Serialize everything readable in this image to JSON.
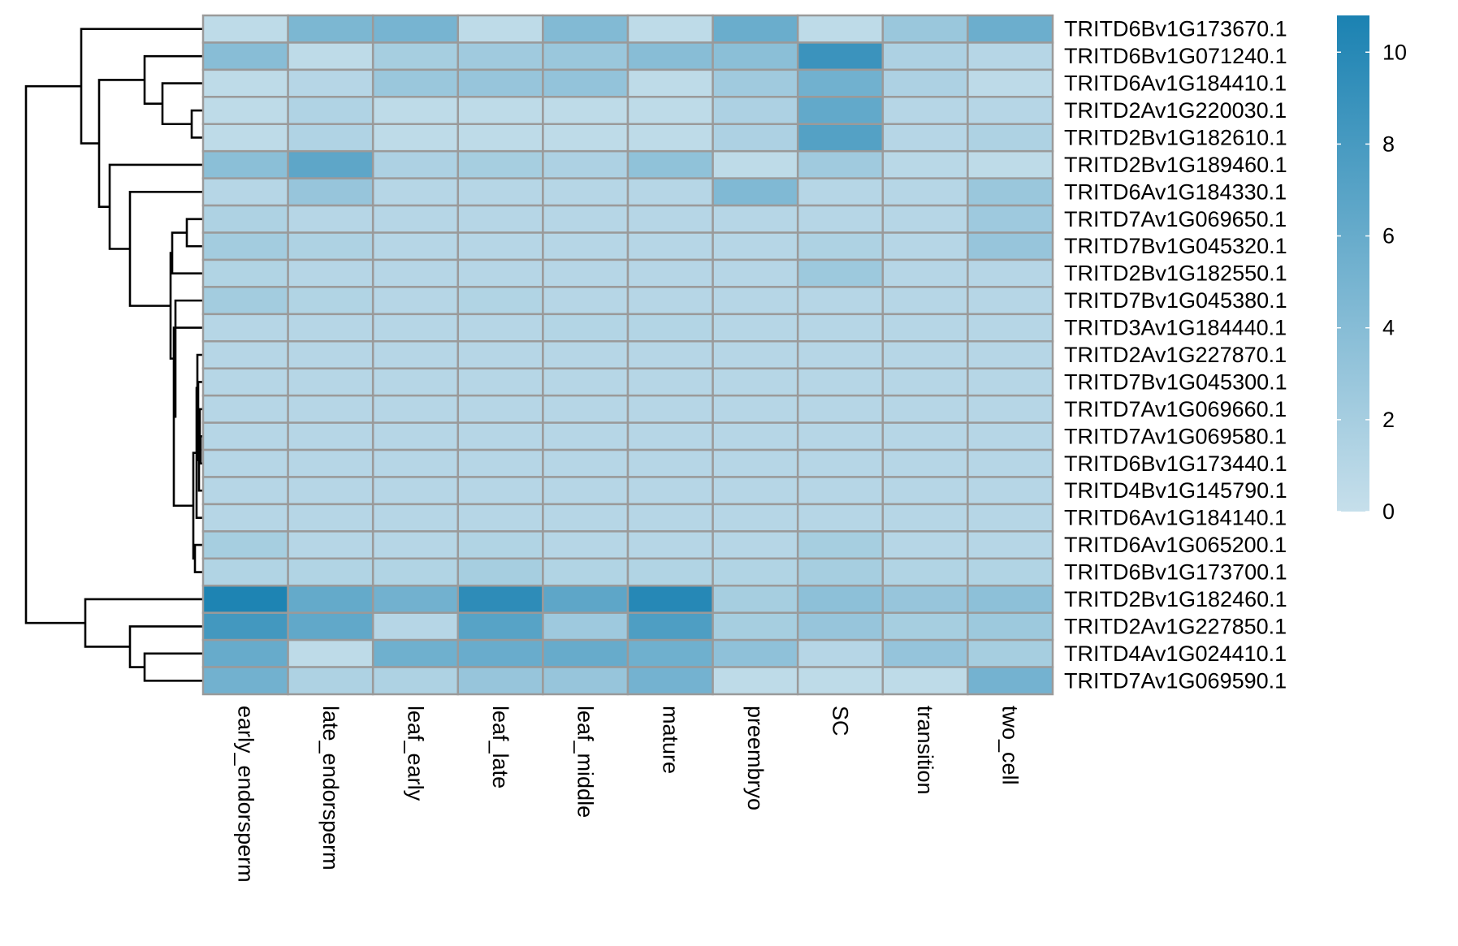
{
  "chart_data": {
    "type": "heatmap",
    "title": "",
    "xlabel": "",
    "ylabel": "",
    "columns": [
      "early_endorsperm",
      "late_endorsperm",
      "leaf_early",
      "leaf_late",
      "leaf_middle",
      "mature",
      "preembryo",
      "SC",
      "transition",
      "two_cell"
    ],
    "rows": [
      {
        "gene": "TRITD6Bv1G173670.1",
        "values": [
          0.5,
          4.7,
          5.0,
          0.5,
          4.3,
          0.5,
          5.8,
          0.5,
          2.8,
          5.7
        ]
      },
      {
        "gene": "TRITD6Bv1G071240.1",
        "values": [
          3.9,
          0.5,
          2.0,
          2.4,
          2.8,
          3.9,
          3.7,
          8.8,
          1.6,
          1.0
        ]
      },
      {
        "gene": "TRITD6Av1G184410.1",
        "values": [
          0.5,
          1.0,
          2.8,
          3.0,
          3.2,
          0.5,
          2.4,
          5.4,
          1.6,
          0.6
        ]
      },
      {
        "gene": "TRITD2Av1G220030.1",
        "values": [
          0.5,
          1.4,
          0.5,
          0.5,
          0.5,
          0.5,
          1.6,
          6.3,
          1.0,
          1.0
        ]
      },
      {
        "gene": "TRITD2Bv1G182610.1",
        "values": [
          0.5,
          1.4,
          0.5,
          0.5,
          0.5,
          0.5,
          1.6,
          7.2,
          1.0,
          1.5
        ]
      },
      {
        "gene": "TRITD2Bv1G189460.1",
        "values": [
          3.7,
          6.6,
          1.6,
          2.0,
          1.6,
          3.4,
          0.5,
          2.4,
          0.8,
          0.5
        ]
      },
      {
        "gene": "TRITD6Av1G184330.1",
        "values": [
          1.0,
          3.0,
          1.0,
          1.0,
          1.0,
          1.0,
          4.4,
          1.0,
          1.0,
          2.8
        ]
      },
      {
        "gene": "TRITD7Av1G069650.1",
        "values": [
          1.5,
          1.0,
          1.0,
          1.0,
          1.0,
          1.0,
          1.0,
          1.0,
          1.0,
          2.5
        ]
      },
      {
        "gene": "TRITD7Bv1G045320.1",
        "values": [
          2.2,
          1.5,
          1.0,
          1.0,
          1.0,
          1.0,
          1.0,
          1.5,
          1.0,
          3.0
        ]
      },
      {
        "gene": "TRITD2Bv1G182550.1",
        "values": [
          1.3,
          1.0,
          1.0,
          1.0,
          1.0,
          1.0,
          1.0,
          2.6,
          1.0,
          1.0
        ]
      },
      {
        "gene": "TRITD7Bv1G045380.1",
        "values": [
          2.2,
          1.3,
          1.0,
          1.3,
          1.0,
          1.0,
          1.0,
          1.0,
          1.0,
          1.0
        ]
      },
      {
        "gene": "TRITD3Av1G184440.1",
        "values": [
          1.0,
          1.0,
          1.0,
          1.0,
          1.2,
          1.2,
          1.0,
          1.0,
          1.0,
          1.0
        ]
      },
      {
        "gene": "TRITD2Av1G227870.1",
        "values": [
          1.0,
          1.0,
          1.0,
          1.0,
          1.0,
          1.0,
          1.0,
          1.0,
          1.0,
          1.0
        ]
      },
      {
        "gene": "TRITD7Bv1G045300.1",
        "values": [
          1.0,
          1.0,
          1.0,
          1.0,
          1.0,
          1.0,
          1.0,
          1.0,
          1.0,
          1.0
        ]
      },
      {
        "gene": "TRITD7Av1G069660.1",
        "values": [
          1.0,
          1.0,
          1.0,
          1.0,
          1.0,
          1.0,
          1.0,
          1.0,
          1.0,
          1.0
        ]
      },
      {
        "gene": "TRITD7Av1G069580.1",
        "values": [
          1.0,
          1.0,
          1.0,
          1.0,
          1.0,
          1.0,
          1.0,
          1.0,
          1.0,
          1.0
        ]
      },
      {
        "gene": "TRITD6Bv1G173440.1",
        "values": [
          1.0,
          1.0,
          1.0,
          1.0,
          1.0,
          1.0,
          1.0,
          1.0,
          1.0,
          1.0
        ]
      },
      {
        "gene": "TRITD4Bv1G145790.1",
        "values": [
          1.0,
          1.0,
          1.0,
          1.0,
          1.0,
          1.0,
          1.0,
          1.0,
          1.0,
          1.0
        ]
      },
      {
        "gene": "TRITD6Av1G184140.1",
        "values": [
          1.0,
          1.0,
          1.0,
          1.0,
          1.0,
          1.0,
          1.0,
          1.0,
          1.0,
          1.0
        ]
      },
      {
        "gene": "TRITD6Av1G065200.1",
        "values": [
          2.0,
          1.0,
          1.0,
          1.3,
          1.0,
          1.0,
          1.0,
          2.0,
          1.0,
          1.0
        ]
      },
      {
        "gene": "TRITD6Bv1G173700.1",
        "values": [
          1.3,
          1.3,
          1.3,
          2.0,
          1.3,
          1.3,
          1.3,
          2.0,
          1.3,
          1.3
        ]
      },
      {
        "gene": "TRITD2Bv1G182460.1",
        "values": [
          10.6,
          6.2,
          5.3,
          9.6,
          6.6,
          10.1,
          2.0,
          3.6,
          3.0,
          3.6
        ]
      },
      {
        "gene": "TRITD2Av1G227850.1",
        "values": [
          8.3,
          6.4,
          1.0,
          7.0,
          2.5,
          7.6,
          2.0,
          3.0,
          2.0,
          2.6
        ]
      },
      {
        "gene": "TRITD4Av1G024410.1",
        "values": [
          6.0,
          0.5,
          5.5,
          5.9,
          6.0,
          5.5,
          3.5,
          1.0,
          3.1,
          2.0
        ]
      },
      {
        "gene": "TRITD7Av1G069590.1",
        "values": [
          5.3,
          1.5,
          1.5,
          3.0,
          3.0,
          5.2,
          0.5,
          0.5,
          0.5,
          5.2
        ]
      }
    ],
    "value_range": [
      0,
      10.8
    ],
    "color_scale": {
      "low": "#c6dfeb",
      "high": "#1b82b2"
    },
    "cell_border_color": "#9a9a9a",
    "row_dendrogram": true,
    "column_dendrogram": false,
    "legend": {
      "position": "right",
      "ticks": [
        0,
        2,
        4,
        6,
        8,
        10
      ],
      "tick_labels": [
        "0",
        "2",
        "4",
        "6",
        "8",
        "10"
      ]
    }
  }
}
